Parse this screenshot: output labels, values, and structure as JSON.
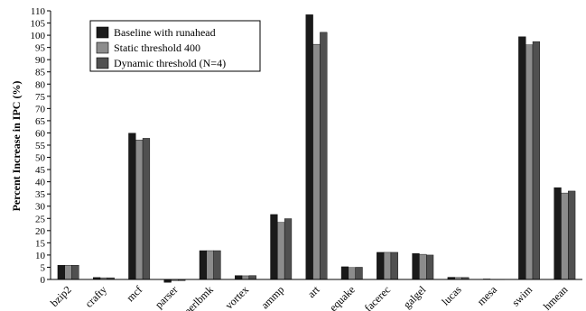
{
  "chart_data": {
    "type": "bar",
    "ylabel": "Percent Increase in IPC (%)",
    "ylim": [
      0,
      110
    ],
    "ytick_step": 5,
    "grid": false,
    "legend_placement": "top-left",
    "categories": [
      "bzip2",
      "crafty",
      "mcf",
      "parser",
      "perlbmk",
      "vortex",
      "ammp",
      "art",
      "equake",
      "facerec",
      "galgel",
      "lucas",
      "mesa",
      "swim",
      "hmean"
    ],
    "series": [
      {
        "name": "Baseline with runahead",
        "color": "#1a1a1a",
        "values": [
          5.8,
          0.8,
          59.9,
          -1.2,
          11.8,
          1.6,
          26.6,
          108.4,
          5.2,
          11.1,
          10.6,
          0.9,
          0.2,
          99.4,
          37.6
        ]
      },
      {
        "name": "Static threshold 400",
        "color": "#8c8c8c",
        "values": [
          5.8,
          0.7,
          57.1,
          -0.5,
          11.8,
          1.5,
          23.4,
          96.3,
          4.9,
          11.1,
          10.3,
          0.8,
          0.1,
          96.1,
          35.4
        ]
      },
      {
        "name": "Dynamic threshold (N=4)",
        "color": "#505050",
        "values": [
          5.8,
          0.7,
          57.8,
          -0.5,
          11.8,
          1.6,
          24.9,
          101.2,
          5.0,
          11.1,
          10.0,
          0.8,
          0.1,
          97.4,
          36.2
        ]
      }
    ]
  }
}
